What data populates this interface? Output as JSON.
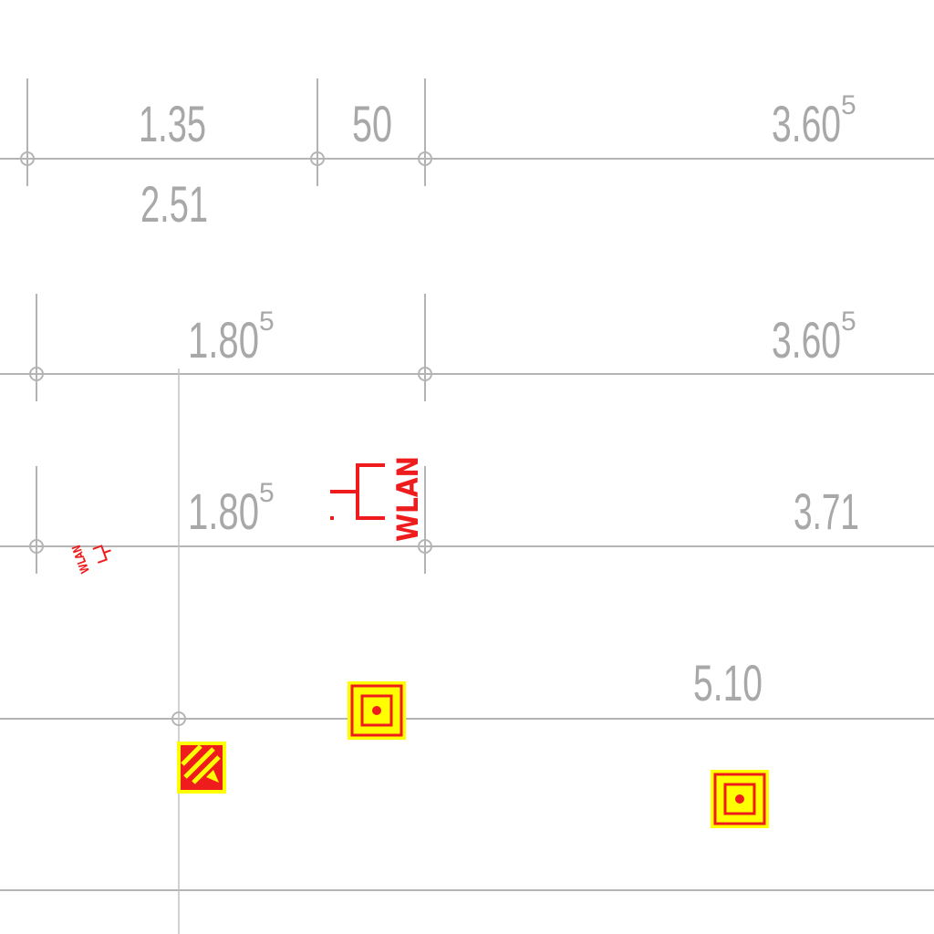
{
  "dimensions": {
    "row1": {
      "a": "1.35",
      "b": "50",
      "c_main": "3.60",
      "c_sup": "5",
      "below": "2.51"
    },
    "row2": {
      "a_main": "1.80",
      "a_sup": "5",
      "c_main": "3.60",
      "c_sup": "5"
    },
    "row3": {
      "a_main": "1.80",
      "a_sup": "5",
      "c": "3.71"
    },
    "row4": {
      "c": "5.10"
    }
  },
  "symbols": {
    "wlan_large": "WLAN",
    "wlan_small": "WLAN"
  },
  "colors": {
    "linework": "#b4b4b4",
    "dimension_text": "#a8a8a8",
    "symbol_red": "#ee1c1c",
    "symbol_yellow": "#ffff00"
  },
  "icons": [
    "wlan-access-point-icon",
    "manual-call-point-icon",
    "fire-detector-icon"
  ]
}
